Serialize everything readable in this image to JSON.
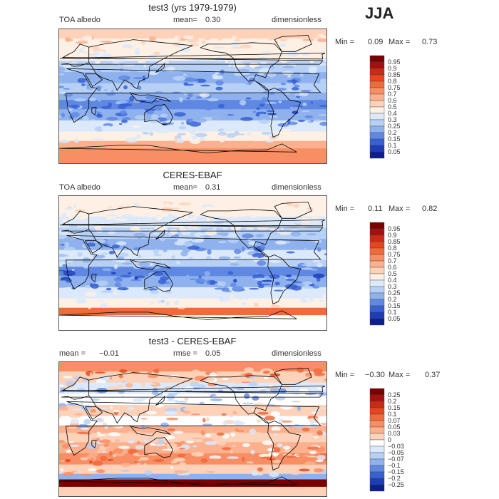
{
  "season": "JJA",
  "colors": {
    "warm": [
      "#ffffff",
      "#fde0d0",
      "#fcbba1",
      "#fb9a7a",
      "#f56b48",
      "#e23a1f",
      "#b50f0f",
      "#7a0000"
    ],
    "cool": [
      "#ffffff",
      "#d9e8fb",
      "#a9c9f5",
      "#7aa6ec",
      "#4d80e0",
      "#2a58d0",
      "#1536a8",
      "#06157a"
    ],
    "land_outline": "#000000",
    "frame": "#555555"
  },
  "panels": [
    {
      "title": "test3 (yrs 1979-1979)",
      "variable": "TOA albedo",
      "mean_label": "mean=",
      "mean_value": "0.30",
      "units": "dimensionless",
      "min_label": "Min =",
      "min_value": "0.09",
      "max_label": "Max =",
      "max_value": "0.73"
    },
    {
      "title": "CERES-EBAF",
      "variable": "TOA albedo",
      "mean_label": "mean=",
      "mean_value": "0.31",
      "units": "dimensionless",
      "min_label": "Min =",
      "min_value": "0.11",
      "max_label": "Max =",
      "max_value": "0.82"
    },
    {
      "title": "test3 - CERES-EBAF",
      "mean_label": "mean =",
      "mean_value": "−0.01",
      "rmse_label": "rmse =",
      "rmse_value": "0.05",
      "units": "dimensionless",
      "min_label": "Min =",
      "min_value": "−0.30",
      "max_label": "Max =",
      "max_value": "0.37"
    }
  ],
  "chart_data": [
    {
      "type": "heatmap",
      "title": "test3 (yrs 1979-1979)",
      "field": "TOA albedo",
      "mean": 0.3,
      "min": 0.09,
      "max": 0.73,
      "colorbar_levels": [
        "0.95",
        "0.9",
        "0.85",
        "0.8",
        "0.75",
        "0.7",
        "0.6",
        "0.5",
        "0.4",
        "0.3",
        "0.25",
        "0.2",
        "0.15",
        "0.1",
        "0.05"
      ],
      "colorbar_colors": [
        "#7a0000",
        "#a50f0f",
        "#cb2a14",
        "#e4461d",
        "#f06a3c",
        "#f88e63",
        "#fbb08e",
        "#fdd2b8",
        "#fef0e4",
        "#dbe9fb",
        "#b7d0f6",
        "#8fb2ee",
        "#5f88e3",
        "#3760d3",
        "#1c3cb8",
        "#0b1f8e"
      ],
      "lat_profile": [
        {
          "lat": 85,
          "value": 0.55
        },
        {
          "lat": 70,
          "value": 0.45
        },
        {
          "lat": 55,
          "value": 0.4
        },
        {
          "lat": 40,
          "value": 0.28
        },
        {
          "lat": 25,
          "value": 0.2
        },
        {
          "lat": 10,
          "value": 0.25
        },
        {
          "lat": 0,
          "value": 0.22
        },
        {
          "lat": -10,
          "value": 0.17
        },
        {
          "lat": -25,
          "value": 0.2
        },
        {
          "lat": -40,
          "value": 0.35
        },
        {
          "lat": -55,
          "value": 0.45
        },
        {
          "lat": -65,
          "value": 0.6
        },
        {
          "lat": -75,
          "value": 0.7
        },
        {
          "lat": -85,
          "value": 0.7
        }
      ]
    },
    {
      "type": "heatmap",
      "title": "CERES-EBAF",
      "field": "TOA albedo",
      "mean": 0.31,
      "min": 0.11,
      "max": 0.82,
      "colorbar_levels": [
        "0.95",
        "0.9",
        "0.85",
        "0.8",
        "0.75",
        "0.7",
        "0.6",
        "0.5",
        "0.4",
        "0.3",
        "0.25",
        "0.2",
        "0.15",
        "0.1",
        "0.05"
      ],
      "colorbar_colors": [
        "#7a0000",
        "#a50f0f",
        "#cb2a14",
        "#e4461d",
        "#f06a3c",
        "#f88e63",
        "#fbb08e",
        "#fdd2b8",
        "#fef0e4",
        "#dbe9fb",
        "#b7d0f6",
        "#8fb2ee",
        "#5f88e3",
        "#3760d3",
        "#1c3cb8",
        "#0b1f8e"
      ],
      "lat_profile": [
        {
          "lat": 85,
          "value": 0.45
        },
        {
          "lat": 70,
          "value": 0.4
        },
        {
          "lat": 55,
          "value": 0.38
        },
        {
          "lat": 40,
          "value": 0.27
        },
        {
          "lat": 25,
          "value": 0.2
        },
        {
          "lat": 10,
          "value": 0.3
        },
        {
          "lat": 0,
          "value": 0.25
        },
        {
          "lat": -10,
          "value": 0.17
        },
        {
          "lat": -25,
          "value": 0.2
        },
        {
          "lat": -40,
          "value": 0.38
        },
        {
          "lat": -55,
          "value": 0.45
        },
        {
          "lat": -65,
          "value": 0.75
        },
        {
          "lat": -75,
          "value": 0.0
        },
        {
          "lat": -85,
          "value": 0.0
        }
      ]
    },
    {
      "type": "heatmap",
      "title": "test3 - CERES-EBAF",
      "mean": -0.01,
      "rmse": 0.05,
      "min": -0.3,
      "max": 0.37,
      "colorbar_levels": [
        "0.25",
        "0.2",
        "0.15",
        "0.1",
        "0.07",
        "0.05",
        "0.03",
        "0",
        "−0.03",
        "−0.05",
        "−0.07",
        "−0.1",
        "−0.15",
        "−0.2",
        "−0.25"
      ],
      "colorbar_colors": [
        "#7a0000",
        "#a50f0f",
        "#cb2a14",
        "#e4461d",
        "#f06a3c",
        "#f88e63",
        "#fbb08e",
        "#fdd2b8",
        "#ffffff",
        "#dbe9fb",
        "#b7d0f6",
        "#8fb2ee",
        "#5f88e3",
        "#3760d3",
        "#1c3cb8",
        "#0b1f8e"
      ],
      "lat_profile": [
        {
          "lat": 85,
          "value": 0.05
        },
        {
          "lat": 70,
          "value": 0.0
        },
        {
          "lat": 55,
          "value": -0.05
        },
        {
          "lat": 40,
          "value": -0.03
        },
        {
          "lat": 25,
          "value": 0.02
        },
        {
          "lat": 10,
          "value": -0.03
        },
        {
          "lat": 0,
          "value": 0.03
        },
        {
          "lat": -10,
          "value": 0.0
        },
        {
          "lat": -25,
          "value": 0.03
        },
        {
          "lat": -40,
          "value": 0.05
        },
        {
          "lat": -55,
          "value": 0.0
        },
        {
          "lat": -65,
          "value": -0.1
        },
        {
          "lat": -70,
          "value": 0.3
        },
        {
          "lat": -85,
          "value": 0.0
        }
      ]
    }
  ]
}
